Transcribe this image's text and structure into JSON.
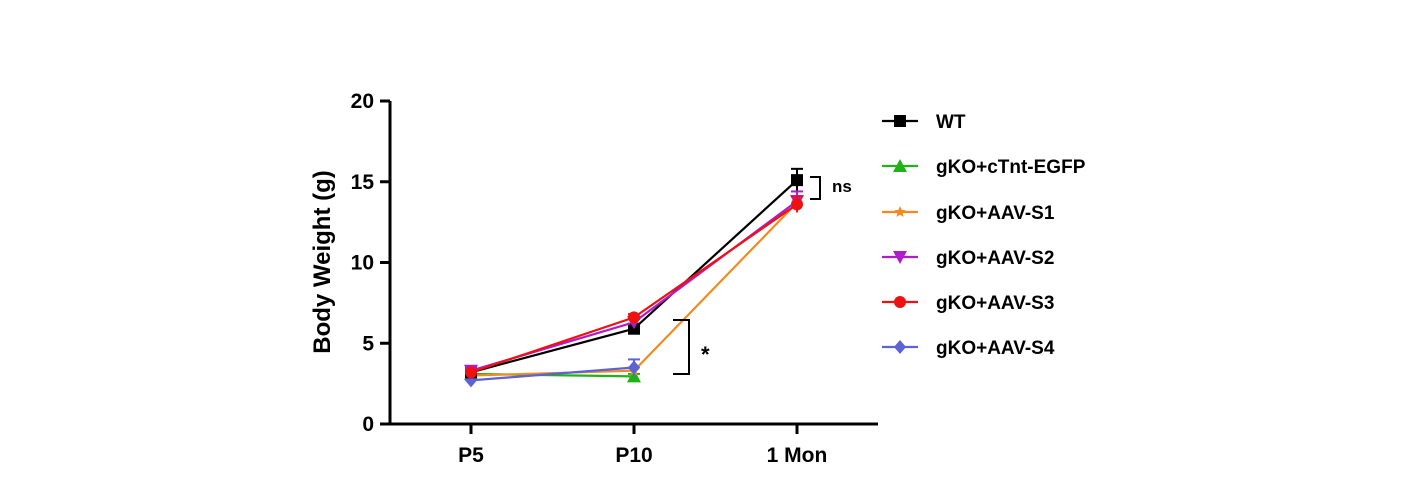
{
  "chart_data": {
    "type": "line",
    "title": "",
    "xlabel": "",
    "ylabel": "Body Weight (g)",
    "categories": [
      "P5",
      "P10",
      "1 Mon"
    ],
    "ylim": [
      0,
      20
    ],
    "yticks": [
      "0",
      "5",
      "10",
      "15",
      "20"
    ],
    "grid": false,
    "legend_position": "right",
    "series": [
      {
        "name": "WT",
        "color": "#000000",
        "marker": "square",
        "values": [
          3.2,
          5.9,
          15.1
        ],
        "errors": [
          0.2,
          0.2,
          0.7
        ]
      },
      {
        "name": "gKO+cTnt-EGFP",
        "color": "#1fb319",
        "marker": "triangle-up",
        "values": [
          3.1,
          2.95,
          null
        ],
        "errors": [
          0.15,
          0.15,
          null
        ]
      },
      {
        "name": "gKO+AAV-S1",
        "color": "#f08c1e",
        "marker": "star",
        "values": [
          3.0,
          3.3,
          13.7
        ],
        "errors": [
          0.15,
          0.2,
          0.4
        ]
      },
      {
        "name": "gKO+AAV-S2",
        "color": "#b01ccc",
        "marker": "triangle-down",
        "values": [
          3.3,
          6.3,
          13.8
        ],
        "errors": [
          0.15,
          0.2,
          0.6
        ]
      },
      {
        "name": "gKO+AAV-S3",
        "color": "#ee1111",
        "marker": "circle",
        "values": [
          3.2,
          6.6,
          13.6
        ],
        "errors": [
          0.15,
          0.2,
          0.5
        ]
      },
      {
        "name": "gKO+AAV-S4",
        "color": "#5b63d6",
        "marker": "diamond",
        "values": [
          2.7,
          3.5,
          null
        ],
        "errors": [
          0.1,
          0.5,
          null
        ]
      }
    ],
    "annotations": [
      {
        "text": "ns",
        "category": "1 Mon"
      },
      {
        "text": "*",
        "category": "P10"
      }
    ]
  }
}
